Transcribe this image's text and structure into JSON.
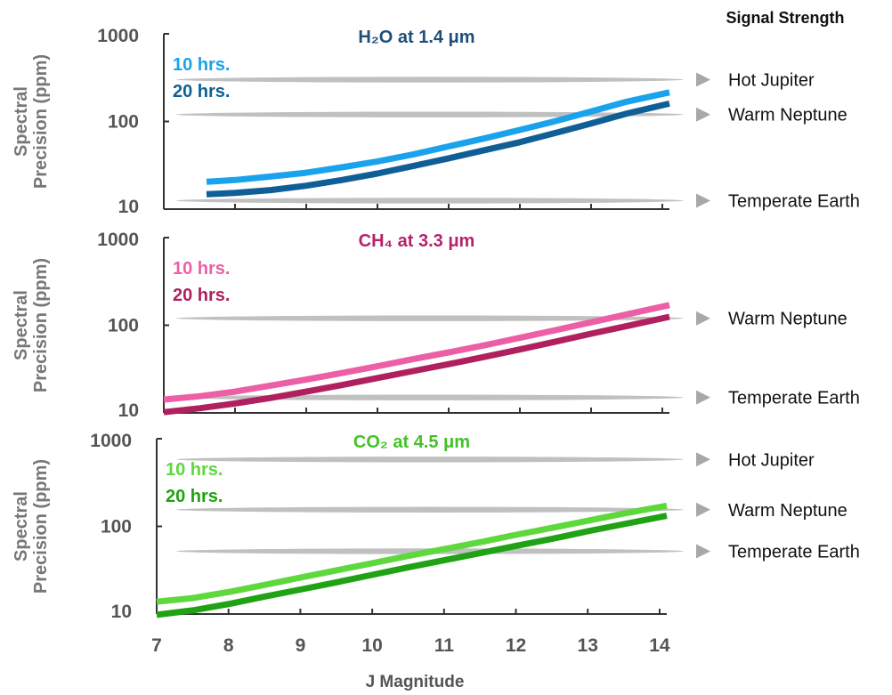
{
  "signal_header": "Signal Strength",
  "colors": {
    "axis": "#333333",
    "tick_text": "#555555",
    "ylabel": "#777777",
    "signal_band": "#b5b5b5",
    "marker": "#a8a8a8"
  },
  "chart_data": [
    {
      "type": "line",
      "title": "H₂O at 1.4 μm",
      "title_color": "#1f4e79",
      "ylabel": "Spectral Precision (ppm)",
      "yscale": "log",
      "ylim": [
        10,
        1000
      ],
      "yticks": [
        "10",
        "100",
        "1000"
      ],
      "xlim": [
        7,
        14.1
      ],
      "series": [
        {
          "name": "10 hrs.",
          "color": "#1aa3ec",
          "x": [
            7.6,
            8.0,
            8.5,
            9.0,
            9.5,
            10.0,
            10.5,
            11.0,
            11.5,
            12.0,
            12.5,
            13.0,
            13.5,
            14.1
          ],
          "y": [
            20.5,
            21.5,
            23.5,
            26,
            30,
            35,
            42,
            52,
            64,
            80,
            101,
            130,
            168,
            215
          ]
        },
        {
          "name": "20 hrs.",
          "color": "#0f5f96",
          "x": [
            7.6,
            8.0,
            8.5,
            9.0,
            9.5,
            10.0,
            10.5,
            11.0,
            11.5,
            12.0,
            12.5,
            13.0,
            13.5,
            14.1
          ],
          "y": [
            14.8,
            15.3,
            16.5,
            18.5,
            21.5,
            25.5,
            31,
            38,
            47,
            58,
            74,
            95,
            123,
            160
          ]
        }
      ],
      "signals": [
        {
          "label": "Hot Jupiter",
          "y": 300
        },
        {
          "label": "Warm Neptune",
          "y": 120
        },
        {
          "label": "Temperate Earth",
          "y": 12.5
        }
      ]
    },
    {
      "type": "line",
      "title": "CH₄ at 3.3 μm",
      "title_color": "#b5236b",
      "ylabel": "Spectral Precision (ppm)",
      "yscale": "log",
      "ylim": [
        10,
        1000
      ],
      "yticks": [
        "10",
        "100",
        "1000"
      ],
      "xlim": [
        7,
        14.1
      ],
      "series": [
        {
          "name": "10 hrs.",
          "color": "#ec5fa6",
          "x": [
            7.0,
            7.5,
            8.0,
            8.5,
            9.0,
            9.5,
            10.0,
            10.5,
            11.0,
            11.5,
            12.0,
            12.5,
            13.0,
            13.5,
            14.1
          ],
          "y": [
            14.2,
            15.5,
            17.5,
            20.5,
            24,
            28.5,
            34,
            41,
            49,
            59,
            72,
            88,
            108,
            133,
            170
          ]
        },
        {
          "name": "20 hrs.",
          "color": "#b0205e",
          "x": [
            7.0,
            7.5,
            8.0,
            8.5,
            9.0,
            9.5,
            10.0,
            10.5,
            11.0,
            11.5,
            12.0,
            12.5,
            13.0,
            13.5,
            14.1
          ],
          "y": [
            10.2,
            11.3,
            12.8,
            14.8,
            17.5,
            20.8,
            25,
            30,
            36,
            43.5,
            53,
            65,
            80,
            98,
            125
          ]
        }
      ],
      "signals": [
        {
          "label": "Warm Neptune",
          "y": 120
        },
        {
          "label": "Temperate Earth",
          "y": 15
        }
      ]
    },
    {
      "type": "line",
      "title": "CO₂ at 4.5 μm",
      "title_color": "#44c227",
      "ylabel": "Spectral Precision (ppm)",
      "yscale": "log",
      "ylim": [
        10,
        1000
      ],
      "yticks": [
        "10",
        "100",
        "1000"
      ],
      "xlabel": "J Magnitude",
      "xlim": [
        7,
        14.1
      ],
      "xticks": [
        7,
        8,
        9,
        10,
        11,
        12,
        13,
        14
      ],
      "series": [
        {
          "name": "10 hrs.",
          "color": "#5fd83e",
          "x": [
            7.0,
            7.5,
            8.0,
            8.5,
            9.0,
            9.5,
            10.0,
            10.5,
            11.0,
            11.5,
            12.0,
            12.5,
            13.0,
            13.5,
            14.1
          ],
          "y": [
            13.8,
            15.2,
            17.8,
            21.5,
            26,
            31.5,
            38,
            46,
            55,
            66,
            80,
            96,
            116,
            140,
            172
          ]
        },
        {
          "name": "20 hrs.",
          "color": "#1fa214",
          "x": [
            7.0,
            7.5,
            8.0,
            8.5,
            9.0,
            9.5,
            10.0,
            10.5,
            11.0,
            11.5,
            12.0,
            12.5,
            13.0,
            13.5,
            14.1
          ],
          "y": [
            9.8,
            11,
            13,
            15.8,
            19,
            23,
            28,
            34,
            41,
            49.5,
            60,
            72,
            88,
            106,
            132
          ]
        }
      ],
      "signals": [
        {
          "label": "Hot Jupiter",
          "y": 580
        },
        {
          "label": "Warm Neptune",
          "y": 155
        },
        {
          "label": "Temperate Earth",
          "y": 52
        }
      ]
    }
  ]
}
